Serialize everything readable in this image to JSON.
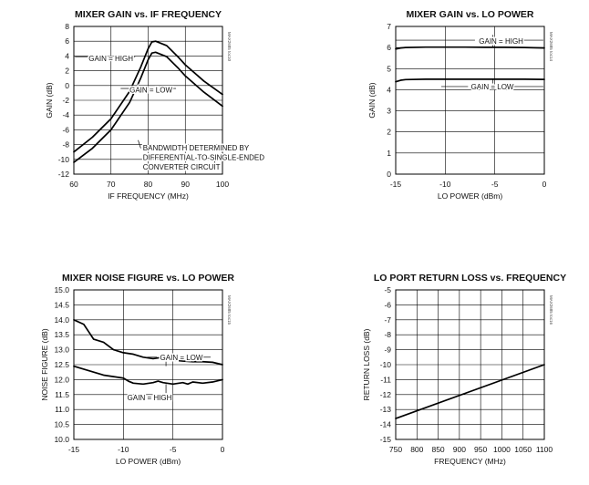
{
  "chart_data": [
    {
      "type": "line",
      "title": "MIXER GAIN vs. IF FREQUENCY",
      "xlabel": "IF FREQUENCY (MHz)",
      "ylabel": "GAIN (dB)",
      "xlim": [
        60,
        100
      ],
      "ylim": [
        -12,
        8
      ],
      "xticks": [
        60,
        70,
        80,
        90,
        100
      ],
      "yticks": [
        -12,
        -10,
        -8,
        -6,
        -4,
        -2,
        0,
        2,
        4,
        6,
        8
      ],
      "xtick_labels": [
        "60",
        "70",
        "80",
        "90",
        "100"
      ],
      "ytick_labels": [
        "-12",
        "-10",
        "-8",
        "-6",
        "-4",
        "-2",
        "0",
        "2",
        "4",
        "6",
        "8"
      ],
      "grid": true,
      "side_label": "MAX2685 toc10",
      "series": [
        {
          "name": "GAIN = HIGH",
          "x": [
            60,
            65,
            70,
            75,
            78,
            80,
            81,
            82,
            85,
            88,
            90,
            95,
            100
          ],
          "y": [
            -9.0,
            -7.0,
            -4.5,
            -0.8,
            2.5,
            5.0,
            5.9,
            6.0,
            5.4,
            3.9,
            2.8,
            0.6,
            -1.2
          ]
        },
        {
          "name": "GAIN = LOW",
          "x": [
            60,
            65,
            70,
            75,
            78,
            80,
            81,
            82,
            85,
            88,
            90,
            95,
            100
          ],
          "y": [
            -10.4,
            -8.5,
            -6.0,
            -2.3,
            1.0,
            3.5,
            4.4,
            4.5,
            3.9,
            2.4,
            1.3,
            -0.9,
            -2.8
          ]
        }
      ],
      "annotations": [
        {
          "text": "GAIN = HIGH",
          "x": 64,
          "y": 3.7
        },
        {
          "text": "GAIN = LOW",
          "x": 75,
          "y": -0.6
        },
        {
          "lines": [
            "BANDWIDTH DETERMINED BY",
            "DIFFERENTIAL-TO-SINGLE-ENDED",
            "CONVERTER CIRCUIT"
          ],
          "x": 78.6,
          "y": -8.8
        }
      ]
    },
    {
      "type": "line",
      "title": "MIXER GAIN vs. LO POWER",
      "xlabel": "LO POWER (dBm)",
      "ylabel": "GAIN (dB)",
      "xlim": [
        -15,
        0
      ],
      "ylim": [
        0,
        7
      ],
      "xticks": [
        -15,
        -10,
        -5,
        0
      ],
      "yticks": [
        0,
        1,
        2,
        3,
        4,
        5,
        6,
        7
      ],
      "xtick_labels": [
        "-15",
        "-10",
        "-5",
        "0"
      ],
      "ytick_labels": [
        "0",
        "1",
        "2",
        "3",
        "4",
        "5",
        "6",
        "7"
      ],
      "grid": true,
      "side_label": "MAX2685 toc14",
      "series": [
        {
          "name": "GAIN = HIGH",
          "x": [
            -15,
            -14.5,
            -14,
            -12,
            -10,
            -8,
            -6,
            -4,
            -2,
            -1,
            0
          ],
          "y": [
            5.93,
            5.98,
            6.0,
            6.02,
            6.02,
            6.02,
            6.01,
            6.01,
            6.0,
            5.99,
            5.98
          ]
        },
        {
          "name": "GAIN = LOW",
          "x": [
            -15,
            -14.5,
            -14,
            -12,
            -10,
            -8,
            -6,
            -4,
            -2,
            0
          ],
          "y": [
            4.38,
            4.45,
            4.48,
            4.5,
            4.5,
            4.5,
            4.5,
            4.5,
            4.5,
            4.49
          ]
        }
      ],
      "annotations": [
        {
          "text": "GAIN = HIGH",
          "x": -6.6,
          "y": 6.3
        },
        {
          "text": "GAIN = LOW",
          "x": -7.4,
          "y": 4.15
        }
      ]
    },
    {
      "type": "line",
      "title": "MIXER NOISE FIGURE vs. LO POWER",
      "xlabel": "LO POWER (dBm)",
      "ylabel": "NOISE FIGURE (dB)",
      "xlim": [
        -15,
        0
      ],
      "ylim": [
        10,
        15
      ],
      "xticks": [
        -15,
        -10,
        -5,
        0
      ],
      "yticks": [
        10,
        10.5,
        11,
        11.5,
        12,
        12.5,
        13,
        13.5,
        14,
        14.5,
        15
      ],
      "xtick_labels": [
        "-15",
        "-10",
        "-5",
        "0"
      ],
      "ytick_labels": [
        "10.0",
        "10.5",
        "11.0",
        "11.5",
        "12.0",
        "12.5",
        "13.0",
        "13.5",
        "14.0",
        "14.5",
        "15.0"
      ],
      "grid": true,
      "side_label": "MAX2685 toc15",
      "series": [
        {
          "name": "GAIN = LOW",
          "x": [
            -15,
            -14,
            -13.5,
            -13,
            -12,
            -11,
            -10,
            -9,
            -8,
            -7,
            -6,
            -5,
            -4,
            -3,
            -2,
            -1,
            0
          ],
          "y": [
            14.0,
            13.85,
            13.6,
            13.35,
            13.25,
            13.0,
            12.9,
            12.85,
            12.75,
            12.7,
            12.75,
            12.65,
            12.62,
            12.6,
            12.6,
            12.58,
            12.5
          ]
        },
        {
          "name": "GAIN = HIGH",
          "x": [
            -15,
            -14,
            -13,
            -12,
            -11,
            -10,
            -9.5,
            -9,
            -8,
            -7,
            -6.5,
            -6,
            -5,
            -4,
            -3.5,
            -3,
            -2,
            -1,
            0
          ],
          "y": [
            12.45,
            12.35,
            12.25,
            12.15,
            12.1,
            12.05,
            11.95,
            11.88,
            11.85,
            11.9,
            11.95,
            11.9,
            11.85,
            11.9,
            11.85,
            11.92,
            11.88,
            11.92,
            12.0
          ]
        }
      ],
      "annotations": [
        {
          "text": "GAIN = LOW",
          "x": -6.3,
          "y": 12.75
        },
        {
          "text": "GAIN = HIGH",
          "x": -9.6,
          "y": 11.4
        }
      ]
    },
    {
      "type": "line",
      "title": "LO PORT RETURN LOSS vs. FREQUENCY",
      "xlabel": "FREQUENCY (MHz)",
      "ylabel": "RETURN LOSS (dB)",
      "xlim": [
        750,
        1100
      ],
      "ylim": [
        -15,
        -5
      ],
      "xticks": [
        750,
        800,
        850,
        900,
        950,
        1000,
        1050,
        1100
      ],
      "yticks": [
        -15,
        -14,
        -13,
        -12,
        -11,
        -10,
        -9,
        -8,
        -7,
        -6,
        -5
      ],
      "xtick_labels": [
        "750",
        "800",
        "850",
        "900",
        "950",
        "1000",
        "1050",
        "1100"
      ],
      "ytick_labels": [
        "-15",
        "-14",
        "-13",
        "-12",
        "-11",
        "-10",
        "-9",
        "-8",
        "-7",
        "-6",
        "-5"
      ],
      "grid": true,
      "side_label": "MAX2685 toc16",
      "series": [
        {
          "name": "",
          "x": [
            750,
            1100
          ],
          "y": [
            -13.6,
            -10.0
          ]
        }
      ],
      "annotations": []
    }
  ]
}
